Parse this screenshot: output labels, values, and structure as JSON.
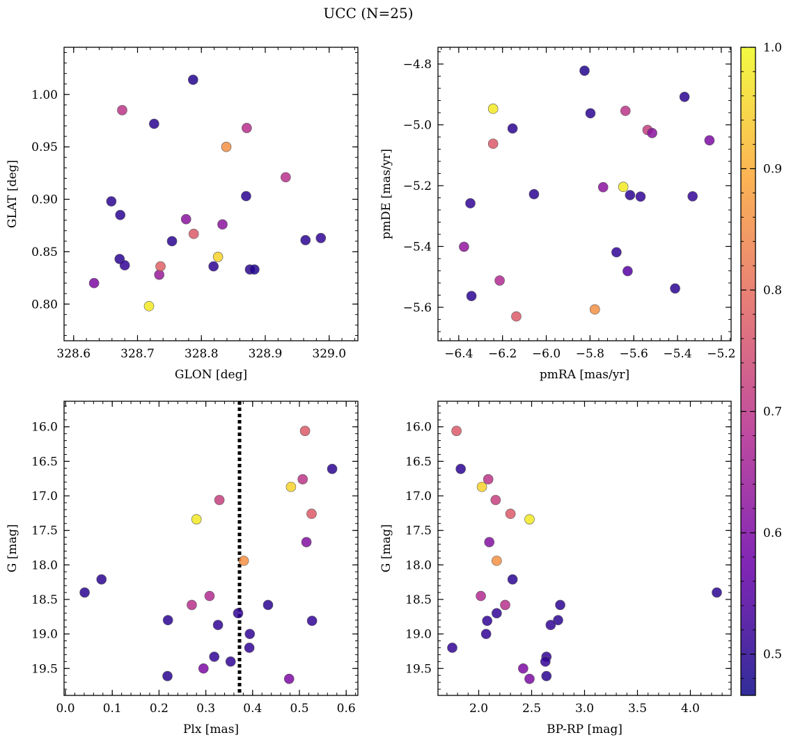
{
  "figure": {
    "title": "UCC (N=25)",
    "colormap": "plasma",
    "point_edge_color": "#555555",
    "colormap_stops": [
      "#0d0887",
      "#6a00a8",
      "#b12a90",
      "#e16462",
      "#fca636",
      "#f0f921"
    ]
  },
  "colorbar": {
    "range": [
      0.466,
      1.0
    ],
    "ticks": [
      0.5,
      0.6,
      0.7,
      0.8,
      0.9,
      1.0
    ],
    "tick_labels": [
      "0.5",
      "0.6",
      "0.7",
      "0.8",
      "0.9",
      "1.0"
    ]
  },
  "chart_data": [
    {
      "type": "scatter",
      "id": "glon-glat",
      "title": "",
      "xlabel": "GLON [deg]",
      "ylabel": "GLAT [deg]",
      "xlim": [
        328.585,
        329.045
      ],
      "ylim": [
        0.765,
        1.045
      ],
      "xticks": [
        328.6,
        328.7,
        328.8,
        328.9,
        329.0
      ],
      "xtick_labels": [
        "328.6",
        "328.7",
        "328.8",
        "328.9",
        "329.0"
      ],
      "yticks": [
        0.8,
        0.85,
        0.9,
        0.95,
        1.0
      ],
      "ytick_labels": [
        "0.80",
        "0.85",
        "0.90",
        "0.95",
        "1.00"
      ],
      "points": [
        {
          "x": 328.632,
          "y": 0.82,
          "c": 0.6
        },
        {
          "x": 328.659,
          "y": 0.898,
          "c": 0.5
        },
        {
          "x": 328.672,
          "y": 0.843,
          "c": 0.5
        },
        {
          "x": 328.673,
          "y": 0.885,
          "c": 0.5
        },
        {
          "x": 328.676,
          "y": 0.985,
          "c": 0.7
        },
        {
          "x": 328.68,
          "y": 0.837,
          "c": 0.51
        },
        {
          "x": 328.718,
          "y": 0.798,
          "c": 0.98
        },
        {
          "x": 328.726,
          "y": 0.972,
          "c": 0.5
        },
        {
          "x": 328.734,
          "y": 0.828,
          "c": 0.64
        },
        {
          "x": 328.736,
          "y": 0.836,
          "c": 0.78
        },
        {
          "x": 328.754,
          "y": 0.86,
          "c": 0.5
        },
        {
          "x": 328.776,
          "y": 0.881,
          "c": 0.62
        },
        {
          "x": 328.787,
          "y": 1.014,
          "c": 0.49
        },
        {
          "x": 328.788,
          "y": 0.867,
          "c": 0.77
        },
        {
          "x": 328.819,
          "y": 0.836,
          "c": 0.5
        },
        {
          "x": 328.826,
          "y": 0.845,
          "c": 0.95
        },
        {
          "x": 328.833,
          "y": 0.876,
          "c": 0.62
        },
        {
          "x": 328.839,
          "y": 0.95,
          "c": 0.86
        },
        {
          "x": 328.87,
          "y": 0.903,
          "c": 0.5
        },
        {
          "x": 328.871,
          "y": 0.968,
          "c": 0.69
        },
        {
          "x": 328.876,
          "y": 0.833,
          "c": 0.5
        },
        {
          "x": 328.883,
          "y": 0.833,
          "c": 0.49
        },
        {
          "x": 328.932,
          "y": 0.921,
          "c": 0.69
        },
        {
          "x": 328.963,
          "y": 0.861,
          "c": 0.5
        },
        {
          "x": 328.987,
          "y": 0.863,
          "c": 0.51
        }
      ]
    },
    {
      "type": "scatter",
      "id": "pmra-pmde",
      "title": "",
      "xlabel": "pmRA [mas/yr]",
      "ylabel": "pmDE [mas/yr]",
      "xlim": [
        -6.495,
        -5.155
      ],
      "ylim": [
        -5.71,
        -4.745
      ],
      "xticks": [
        -6.4,
        -6.2,
        -6.0,
        -5.8,
        -5.6,
        -5.4,
        -5.2
      ],
      "xtick_labels": [
        "−6.4",
        "−6.2",
        "−6.0",
        "−5.8",
        "−5.6",
        "−5.4",
        "−5.2"
      ],
      "yticks": [
        -5.6,
        -5.4,
        -5.2,
        -5.0,
        -4.8
      ],
      "ytick_labels": [
        "−5.6",
        "−5.4",
        "−5.2",
        "−5.0",
        "−4.8"
      ],
      "points": [
        {
          "x": -5.825,
          "y": -4.822,
          "c": 0.49
        },
        {
          "x": -5.368,
          "y": -4.908,
          "c": 0.5
        },
        {
          "x": -6.243,
          "y": -4.947,
          "c": 0.98
        },
        {
          "x": -5.638,
          "y": -4.954,
          "c": 0.7
        },
        {
          "x": -5.798,
          "y": -4.962,
          "c": 0.5
        },
        {
          "x": -6.154,
          "y": -5.012,
          "c": 0.5
        },
        {
          "x": -5.537,
          "y": -5.017,
          "c": 0.72
        },
        {
          "x": -5.516,
          "y": -5.027,
          "c": 0.62
        },
        {
          "x": -5.254,
          "y": -5.051,
          "c": 0.6
        },
        {
          "x": -6.243,
          "y": -5.062,
          "c": 0.77
        },
        {
          "x": -5.74,
          "y": -5.205,
          "c": 0.62
        },
        {
          "x": -5.648,
          "y": -5.204,
          "c": 0.98
        },
        {
          "x": -6.056,
          "y": -5.228,
          "c": 0.5
        },
        {
          "x": -5.617,
          "y": -5.231,
          "c": 0.5
        },
        {
          "x": -5.569,
          "y": -5.236,
          "c": 0.51
        },
        {
          "x": -5.331,
          "y": -5.235,
          "c": 0.51
        },
        {
          "x": -6.347,
          "y": -5.258,
          "c": 0.51
        },
        {
          "x": -6.376,
          "y": -5.401,
          "c": 0.63
        },
        {
          "x": -5.679,
          "y": -5.419,
          "c": 0.51
        },
        {
          "x": -5.628,
          "y": -5.481,
          "c": 0.55
        },
        {
          "x": -6.213,
          "y": -5.512,
          "c": 0.68
        },
        {
          "x": -5.411,
          "y": -5.538,
          "c": 0.5
        },
        {
          "x": -6.342,
          "y": -5.563,
          "c": 0.5
        },
        {
          "x": -5.778,
          "y": -5.607,
          "c": 0.86
        },
        {
          "x": -6.137,
          "y": -5.63,
          "c": 0.77
        }
      ]
    },
    {
      "type": "scatter",
      "id": "plx-g",
      "title": "",
      "xlabel": "Plx [mas]",
      "ylabel": "G [mag]",
      "xlim": [
        -0.003,
        0.625
      ],
      "ylim": [
        19.89,
        15.63
      ],
      "y_inverted": true,
      "vline": {
        "x": 0.372,
        "style": "dotted"
      },
      "xticks": [
        0.0,
        0.1,
        0.2,
        0.3,
        0.4,
        0.5,
        0.6
      ],
      "xtick_labels": [
        "0.0",
        "0.1",
        "0.2",
        "0.3",
        "0.4",
        "0.5",
        "0.6"
      ],
      "yticks": [
        16.0,
        16.5,
        17.0,
        17.5,
        18.0,
        18.5,
        19.0,
        19.5
      ],
      "ytick_labels": [
        "16.0",
        "16.5",
        "17.0",
        "17.5",
        "18.0",
        "18.5",
        "19.0",
        "19.5"
      ],
      "points": [
        {
          "x": 0.512,
          "y": 16.06,
          "c": 0.77
        },
        {
          "x": 0.57,
          "y": 16.61,
          "c": 0.5
        },
        {
          "x": 0.507,
          "y": 16.76,
          "c": 0.7
        },
        {
          "x": 0.482,
          "y": 16.87,
          "c": 0.95
        },
        {
          "x": 0.329,
          "y": 17.06,
          "c": 0.72
        },
        {
          "x": 0.526,
          "y": 17.26,
          "c": 0.77
        },
        {
          "x": 0.28,
          "y": 17.34,
          "c": 0.98
        },
        {
          "x": 0.515,
          "y": 17.67,
          "c": 0.61
        },
        {
          "x": 0.381,
          "y": 17.94,
          "c": 0.86
        },
        {
          "x": 0.077,
          "y": 18.21,
          "c": 0.5
        },
        {
          "x": 0.041,
          "y": 18.4,
          "c": 0.5
        },
        {
          "x": 0.308,
          "y": 18.45,
          "c": 0.68
        },
        {
          "x": 0.27,
          "y": 18.58,
          "c": 0.69
        },
        {
          "x": 0.433,
          "y": 18.58,
          "c": 0.5
        },
        {
          "x": 0.369,
          "y": 18.7,
          "c": 0.51
        },
        {
          "x": 0.219,
          "y": 18.8,
          "c": 0.5
        },
        {
          "x": 0.527,
          "y": 18.81,
          "c": 0.51
        },
        {
          "x": 0.326,
          "y": 18.87,
          "c": 0.51
        },
        {
          "x": 0.394,
          "y": 19.0,
          "c": 0.51
        },
        {
          "x": 0.393,
          "y": 19.2,
          "c": 0.51
        },
        {
          "x": 0.318,
          "y": 19.33,
          "c": 0.51
        },
        {
          "x": 0.353,
          "y": 19.4,
          "c": 0.51
        },
        {
          "x": 0.295,
          "y": 19.5,
          "c": 0.6
        },
        {
          "x": 0.218,
          "y": 19.61,
          "c": 0.5
        },
        {
          "x": 0.478,
          "y": 19.65,
          "c": 0.6
        }
      ]
    },
    {
      "type": "scatter",
      "id": "bprp-g",
      "title": "",
      "xlabel": "BP-RP [mag]",
      "ylabel": "G [mag]",
      "xlim": [
        1.615,
        4.385
      ],
      "ylim": [
        19.89,
        15.63
      ],
      "y_inverted": true,
      "xticks": [
        2.0,
        2.5,
        3.0,
        3.5,
        4.0
      ],
      "xtick_labels": [
        "2.0",
        "2.5",
        "3.0",
        "3.5",
        "4.0"
      ],
      "yticks": [
        16.0,
        16.5,
        17.0,
        17.5,
        18.0,
        18.5,
        19.0,
        19.5
      ],
      "ytick_labels": [
        "16.0",
        "16.5",
        "17.0",
        "17.5",
        "18.0",
        "18.5",
        "19.0",
        "19.5"
      ],
      "points": [
        {
          "x": 1.79,
          "y": 16.06,
          "c": 0.77
        },
        {
          "x": 1.83,
          "y": 16.61,
          "c": 0.5
        },
        {
          "x": 2.09,
          "y": 16.76,
          "c": 0.7
        },
        {
          "x": 2.03,
          "y": 16.87,
          "c": 0.95
        },
        {
          "x": 2.16,
          "y": 17.06,
          "c": 0.72
        },
        {
          "x": 2.3,
          "y": 17.26,
          "c": 0.77
        },
        {
          "x": 2.48,
          "y": 17.34,
          "c": 0.98
        },
        {
          "x": 2.1,
          "y": 17.67,
          "c": 0.61
        },
        {
          "x": 2.17,
          "y": 17.94,
          "c": 0.86
        },
        {
          "x": 2.32,
          "y": 18.21,
          "c": 0.5
        },
        {
          "x": 4.25,
          "y": 18.4,
          "c": 0.5
        },
        {
          "x": 2.02,
          "y": 18.45,
          "c": 0.68
        },
        {
          "x": 2.25,
          "y": 18.58,
          "c": 0.69
        },
        {
          "x": 2.77,
          "y": 18.58,
          "c": 0.5
        },
        {
          "x": 2.17,
          "y": 18.7,
          "c": 0.51
        },
        {
          "x": 2.75,
          "y": 18.8,
          "c": 0.5
        },
        {
          "x": 2.08,
          "y": 18.81,
          "c": 0.51
        },
        {
          "x": 2.68,
          "y": 18.87,
          "c": 0.51
        },
        {
          "x": 2.07,
          "y": 19.0,
          "c": 0.51
        },
        {
          "x": 1.75,
          "y": 19.2,
          "c": 0.51
        },
        {
          "x": 2.64,
          "y": 19.33,
          "c": 0.51
        },
        {
          "x": 2.63,
          "y": 19.4,
          "c": 0.51
        },
        {
          "x": 2.42,
          "y": 19.5,
          "c": 0.6
        },
        {
          "x": 2.64,
          "y": 19.61,
          "c": 0.5
        },
        {
          "x": 2.48,
          "y": 19.65,
          "c": 0.6
        }
      ]
    }
  ]
}
